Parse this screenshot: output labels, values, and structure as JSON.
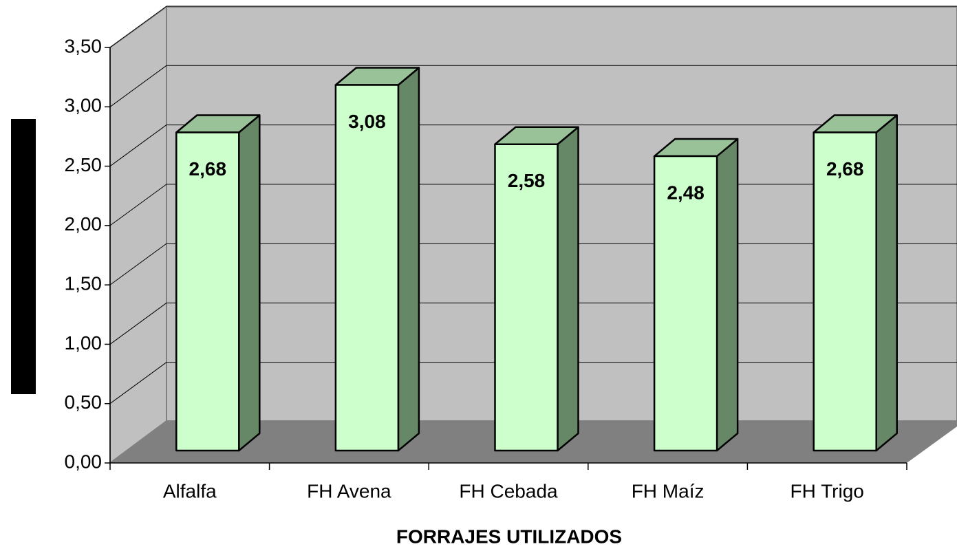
{
  "chart_data": {
    "type": "bar3d",
    "categories": [
      "Alfalfa",
      "FH Avena",
      "FH Cebada",
      "FH Maíz",
      "FH Trigo"
    ],
    "values": [
      2.68,
      3.08,
      2.58,
      2.48,
      2.68
    ],
    "value_labels": [
      "2,68",
      "3,08",
      "2,58",
      "2,48",
      "2,68"
    ],
    "x_label": "FORRAJES UTILIZADOS",
    "color": "#ccffcc",
    "ylim": [
      0,
      3.5
    ],
    "yticks": [
      {
        "value": 0,
        "label": "0,00"
      },
      {
        "value": 0.5,
        "label": "0,50"
      },
      {
        "value": 1,
        "label": "1,00"
      },
      {
        "value": 1.5,
        "label": "1,50"
      },
      {
        "value": 2,
        "label": "2,00"
      },
      {
        "value": 2.5,
        "label": "2,50"
      },
      {
        "value": 3,
        "label": "3,00"
      },
      {
        "value": 3.5,
        "label": "3,50"
      }
    ],
    "grid": true
  }
}
